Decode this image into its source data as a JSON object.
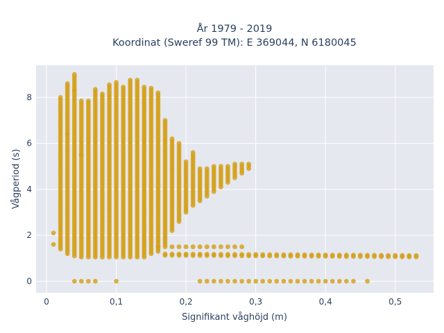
{
  "chart_data": {
    "type": "scatter",
    "title_line1": "År 1979 - 2019",
    "title_line2": "Koordinat (Sweref 99 TM): E 369044, N 6180045",
    "xlabel": "Signifikant våghöjd (m)",
    "ylabel": "Vågperiod (s)",
    "xlim": [
      -0.015,
      0.555
    ],
    "ylim": [
      -0.5,
      9.4
    ],
    "x_ticks": [
      0,
      0.1,
      0.2,
      0.3,
      0.4,
      0.5
    ],
    "x_tick_labels": [
      "0",
      "0,1",
      "0,2",
      "0,3",
      "0,4",
      "0,5"
    ],
    "y_ticks": [
      0,
      2,
      4,
      6,
      8
    ],
    "y_tick_labels": [
      "0",
      "2",
      "4",
      "6",
      "8"
    ],
    "grid": true,
    "colors": {
      "marker": "#d4a017",
      "plot_bg": "#e5e8ef",
      "grid": "#ffffff",
      "text": "#2a3f5f"
    },
    "columns": [
      {
        "x": 0.01,
        "y_min": 1.6,
        "y_max": 1.6
      },
      {
        "x": 0.02,
        "y_min": 1.4,
        "y_max": 8.0
      },
      {
        "x": 0.03,
        "y_min": 1.2,
        "y_max": 8.6
      },
      {
        "x": 0.04,
        "y_min": 1.1,
        "y_max": 9.0
      },
      {
        "x": 0.05,
        "y_min": 1.05,
        "y_max": 7.9
      },
      {
        "x": 0.06,
        "y_min": 1.05,
        "y_max": 7.9
      },
      {
        "x": 0.07,
        "y_min": 1.05,
        "y_max": 8.4
      },
      {
        "x": 0.08,
        "y_min": 1.05,
        "y_max": 8.2
      },
      {
        "x": 0.09,
        "y_min": 1.05,
        "y_max": 8.6
      },
      {
        "x": 0.1,
        "y_min": 1.05,
        "y_max": 8.7
      },
      {
        "x": 0.11,
        "y_min": 1.05,
        "y_max": 8.5
      },
      {
        "x": 0.12,
        "y_min": 1.05,
        "y_max": 8.8
      },
      {
        "x": 0.13,
        "y_min": 1.05,
        "y_max": 8.8
      },
      {
        "x": 0.14,
        "y_min": 1.05,
        "y_max": 8.5
      },
      {
        "x": 0.15,
        "y_min": 1.2,
        "y_max": 8.4
      },
      {
        "x": 0.16,
        "y_min": 1.3,
        "y_max": 8.2
      },
      {
        "x": 0.17,
        "y_min": 1.6,
        "y_max": 7.0
      },
      {
        "x": 0.18,
        "y_min": 2.2,
        "y_max": 6.2
      },
      {
        "x": 0.19,
        "y_min": 2.6,
        "y_max": 6.0
      },
      {
        "x": 0.2,
        "y_min": 3.0,
        "y_max": 5.2
      },
      {
        "x": 0.21,
        "y_min": 3.3,
        "y_max": 5.6
      },
      {
        "x": 0.22,
        "y_min": 3.5,
        "y_max": 4.9
      },
      {
        "x": 0.23,
        "y_min": 3.7,
        "y_max": 4.9
      },
      {
        "x": 0.24,
        "y_min": 3.9,
        "y_max": 5.0
      },
      {
        "x": 0.25,
        "y_min": 4.1,
        "y_max": 5.0
      },
      {
        "x": 0.26,
        "y_min": 4.3,
        "y_max": 5.0
      },
      {
        "x": 0.27,
        "y_min": 4.5,
        "y_max": 5.1
      },
      {
        "x": 0.28,
        "y_min": 4.7,
        "y_max": 5.1
      },
      {
        "x": 0.29,
        "y_min": 4.9,
        "y_max": 5.1
      }
    ],
    "bottom_band_x": [
      0.17,
      0.53
    ],
    "bottom_band_y": [
      1.15,
      1.08
    ],
    "lower_band_x": [
      0.16,
      0.28
    ],
    "lower_band_y": 1.5,
    "zero_points_x": [
      0.04,
      0.05,
      0.06,
      0.07,
      0.1,
      0.22,
      0.23,
      0.24,
      0.25,
      0.26,
      0.27,
      0.28,
      0.29,
      0.3,
      0.31,
      0.32,
      0.33,
      0.34,
      0.35,
      0.36,
      0.37,
      0.38,
      0.39,
      0.4,
      0.41,
      0.42,
      0.43,
      0.44,
      0.46
    ],
    "extra_points": [
      [
        0.01,
        2.1
      ],
      [
        0.03,
        6.4
      ],
      [
        0.04,
        8.3
      ],
      [
        0.05,
        5.5
      ]
    ]
  }
}
